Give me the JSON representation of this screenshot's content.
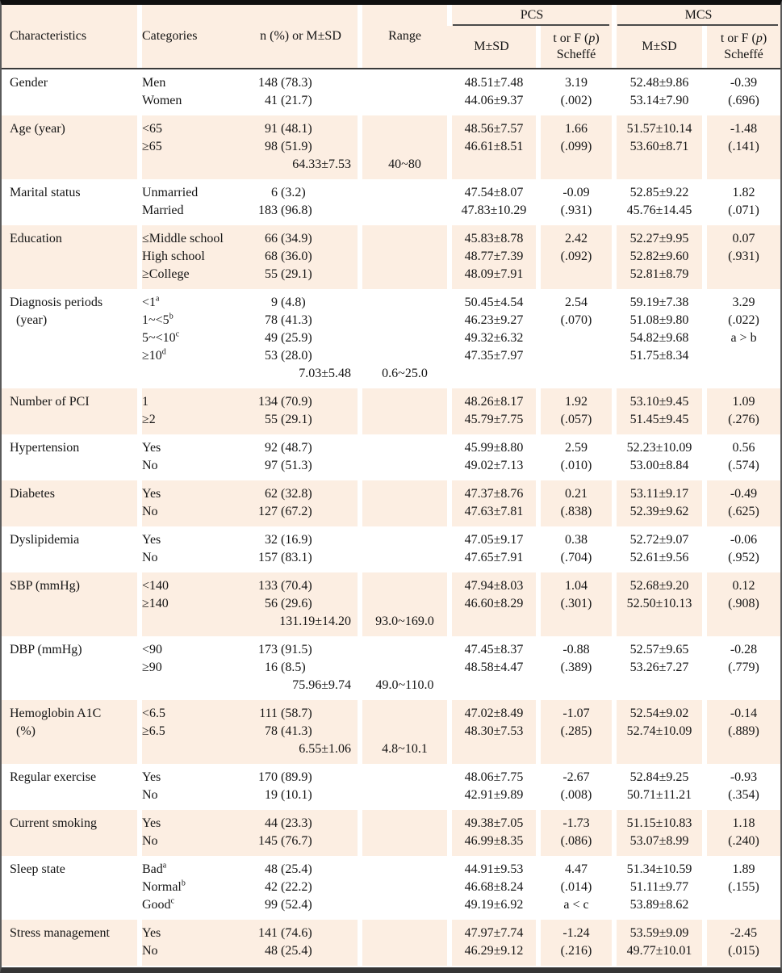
{
  "colors": {
    "row_shade": "#fceee2",
    "header_rule": "#3a3a3a",
    "outer_border": "#101010"
  },
  "table": {
    "header": {
      "characteristics": "Characteristics",
      "categories": "Categories",
      "n_or_msd": "n (%) or M±SD",
      "range": "Range",
      "group_pcs": "PCS",
      "group_mcs": "MCS",
      "sub_msd": "M±SD",
      "stat": {
        "pre": "t or F (",
        "italic": "p",
        "post": ")",
        "line2": "Scheffé"
      }
    },
    "rows": [
      {
        "label": [
          "Gender"
        ],
        "shaded": false,
        "cats": [
          {
            "t": "Men"
          },
          {
            "t": "Women"
          }
        ],
        "counts": [
          [
            "148",
            "(78.3)"
          ],
          [
            "41",
            "(21.7)"
          ]
        ],
        "pcs_msd": [
          "48.51±7.48",
          "44.06±9.37"
        ],
        "pcs_t": [
          "3.19",
          "(.002)"
        ],
        "mcs_msd": [
          "52.48±9.86",
          "53.14±7.90"
        ],
        "mcs_t": [
          "-0.39",
          "(.696)"
        ]
      },
      {
        "label": [
          "Age (year)"
        ],
        "shaded": true,
        "cats": [
          {
            "t": "<65"
          },
          {
            "t": "≥65"
          }
        ],
        "counts": [
          [
            "91",
            "(48.1)"
          ],
          [
            "98",
            "(51.9)"
          ]
        ],
        "sum": "64.33±7.53",
        "range": "40~80",
        "pcs_msd": [
          "48.56±7.57",
          "46.61±8.51"
        ],
        "pcs_t": [
          "1.66",
          "(.099)"
        ],
        "mcs_msd": [
          "51.57±10.14",
          "53.60±8.71"
        ],
        "mcs_t": [
          "-1.48",
          "(.141)"
        ]
      },
      {
        "label": [
          "Marital status"
        ],
        "shaded": false,
        "cats": [
          {
            "t": "Unmarried"
          },
          {
            "t": "Married"
          }
        ],
        "counts": [
          [
            "6",
            "(3.2)"
          ],
          [
            "183",
            "(96.8)"
          ]
        ],
        "pcs_msd": [
          "47.54±8.07",
          "47.83±10.29"
        ],
        "pcs_t": [
          "-0.09",
          "(.931)"
        ],
        "mcs_msd": [
          "52.85±9.22",
          "45.76±14.45"
        ],
        "mcs_t": [
          "1.82",
          "(.071)"
        ]
      },
      {
        "label": [
          "Education"
        ],
        "shaded": true,
        "cats": [
          {
            "t": "≤Middle school"
          },
          {
            "t": "High school"
          },
          {
            "t": "≥College"
          }
        ],
        "counts": [
          [
            "66",
            "(34.9)"
          ],
          [
            "68",
            "(36.0)"
          ],
          [
            "55",
            "(29.1)"
          ]
        ],
        "pcs_msd": [
          "45.83±8.78",
          "48.77±7.39",
          "48.09±7.91"
        ],
        "pcs_t": [
          "2.42",
          "(.092)"
        ],
        "mcs_msd": [
          "52.27±9.95",
          "52.82±9.60",
          "52.81±8.79"
        ],
        "mcs_t": [
          "0.07",
          "(.931)"
        ]
      },
      {
        "label": [
          "Diagnosis periods",
          "(year)"
        ],
        "shaded": false,
        "cats": [
          {
            "t": "<1",
            "s": "a"
          },
          {
            "t": "1~<5",
            "s": "b"
          },
          {
            "t": "5~<10",
            "s": "c"
          },
          {
            "t": "≥10",
            "s": "d"
          }
        ],
        "counts": [
          [
            "9",
            "(4.8)"
          ],
          [
            "78",
            "(41.3)"
          ],
          [
            "49",
            "(25.9)"
          ],
          [
            "53",
            "(28.0)"
          ]
        ],
        "sum": "7.03±5.48",
        "range": "0.6~25.0",
        "pcs_msd": [
          "50.45±4.54",
          "46.23±9.27",
          "49.32±6.32",
          "47.35±7.97"
        ],
        "pcs_t": [
          "2.54",
          "(.070)"
        ],
        "mcs_msd": [
          "59.19±7.38",
          "51.08±9.80",
          "54.82±9.68",
          "51.75±8.34"
        ],
        "mcs_t": [
          "3.29",
          "(.022)",
          "a > b"
        ]
      },
      {
        "label": [
          "Number of PCI"
        ],
        "shaded": true,
        "cats": [
          {
            "t": "1"
          },
          {
            "t": "≥2"
          }
        ],
        "counts": [
          [
            "134",
            "(70.9)"
          ],
          [
            "55",
            "(29.1)"
          ]
        ],
        "pcs_msd": [
          "48.26±8.17",
          "45.79±7.75"
        ],
        "pcs_t": [
          "1.92",
          "(.057)"
        ],
        "mcs_msd": [
          "53.10±9.45",
          "51.45±9.45"
        ],
        "mcs_t": [
          "1.09",
          "(.276)"
        ]
      },
      {
        "label": [
          "Hypertension"
        ],
        "shaded": false,
        "cats": [
          {
            "t": "Yes"
          },
          {
            "t": "No"
          }
        ],
        "counts": [
          [
            "92",
            "(48.7)"
          ],
          [
            "97",
            "(51.3)"
          ]
        ],
        "pcs_msd": [
          "45.99±8.80",
          "49.02±7.13"
        ],
        "pcs_t": [
          "2.59",
          "(.010)"
        ],
        "mcs_msd": [
          "52.23±10.09",
          "53.00±8.84"
        ],
        "mcs_t": [
          "0.56",
          "(.574)"
        ]
      },
      {
        "label": [
          "Diabetes"
        ],
        "shaded": true,
        "cats": [
          {
            "t": "Yes"
          },
          {
            "t": "No"
          }
        ],
        "counts": [
          [
            "62",
            "(32.8)"
          ],
          [
            "127",
            "(67.2)"
          ]
        ],
        "pcs_msd": [
          "47.37±8.76",
          "47.63±7.81"
        ],
        "pcs_t": [
          "0.21",
          "(.838)"
        ],
        "mcs_msd": [
          "53.11±9.17",
          "52.39±9.62"
        ],
        "mcs_t": [
          "-0.49",
          "(.625)"
        ]
      },
      {
        "label": [
          "Dyslipidemia"
        ],
        "shaded": false,
        "cats": [
          {
            "t": "Yes"
          },
          {
            "t": "No"
          }
        ],
        "counts": [
          [
            "32",
            "(16.9)"
          ],
          [
            "157",
            "(83.1)"
          ]
        ],
        "pcs_msd": [
          "47.05±9.17",
          "47.65±7.91"
        ],
        "pcs_t": [
          "0.38",
          "(.704)"
        ],
        "mcs_msd": [
          "52.72±9.07",
          "52.61±9.56"
        ],
        "mcs_t": [
          "-0.06",
          "(.952)"
        ]
      },
      {
        "label": [
          "SBP (mmHg)"
        ],
        "shaded": true,
        "cats": [
          {
            "t": "<140"
          },
          {
            "t": "≥140"
          }
        ],
        "counts": [
          [
            "133",
            "(70.4)"
          ],
          [
            "56",
            "(29.6)"
          ]
        ],
        "sum": "131.19±14.20",
        "range": "93.0~169.0",
        "pcs_msd": [
          "47.94±8.03",
          "46.60±8.29"
        ],
        "pcs_t": [
          "1.04",
          "(.301)"
        ],
        "mcs_msd": [
          "52.68±9.20",
          "52.50±10.13"
        ],
        "mcs_t": [
          "0.12",
          "(.908)"
        ]
      },
      {
        "label": [
          "DBP (mmHg)"
        ],
        "shaded": false,
        "cats": [
          {
            "t": "<90"
          },
          {
            "t": "≥90"
          }
        ],
        "counts": [
          [
            "173",
            "(91.5)"
          ],
          [
            "16",
            "(8.5)"
          ]
        ],
        "sum": "75.96±9.74",
        "range": "49.0~110.0",
        "pcs_msd": [
          "47.45±8.37",
          "48.58±4.47"
        ],
        "pcs_t": [
          "-0.88",
          "(.389)"
        ],
        "mcs_msd": [
          "52.57±9.65",
          "53.26±7.27"
        ],
        "mcs_t": [
          "-0.28",
          "(.779)"
        ]
      },
      {
        "label": [
          "Hemoglobin A1C",
          "(%)"
        ],
        "shaded": true,
        "cats": [
          {
            "t": "<6.5"
          },
          {
            "t": "≥6.5"
          }
        ],
        "counts": [
          [
            "111",
            "(58.7)"
          ],
          [
            "78",
            "(41.3)"
          ]
        ],
        "sum": "6.55±1.06",
        "range": "4.8~10.1",
        "pcs_msd": [
          "47.02±8.49",
          "48.30±7.53"
        ],
        "pcs_t": [
          "-1.07",
          "(.285)"
        ],
        "mcs_msd": [
          "52.54±9.02",
          "52.74±10.09"
        ],
        "mcs_t": [
          "-0.14",
          "(.889)"
        ]
      },
      {
        "label": [
          "Regular exercise"
        ],
        "shaded": false,
        "cats": [
          {
            "t": "Yes"
          },
          {
            "t": "No"
          }
        ],
        "counts": [
          [
            "170",
            "(89.9)"
          ],
          [
            "19",
            "(10.1)"
          ]
        ],
        "pcs_msd": [
          "48.06±7.75",
          "42.91±9.89"
        ],
        "pcs_t": [
          "-2.67",
          "(.008)"
        ],
        "mcs_msd": [
          "52.84±9.25",
          "50.71±11.21"
        ],
        "mcs_t": [
          "-0.93",
          "(.354)"
        ]
      },
      {
        "label": [
          "Current smoking"
        ],
        "shaded": true,
        "cats": [
          {
            "t": "Yes"
          },
          {
            "t": "No"
          }
        ],
        "counts": [
          [
            "44",
            "(23.3)"
          ],
          [
            "145",
            "(76.7)"
          ]
        ],
        "pcs_msd": [
          "49.38±7.05",
          "46.99±8.35"
        ],
        "pcs_t": [
          "-1.73",
          "(.086)"
        ],
        "mcs_msd": [
          "51.15±10.83",
          "53.07±8.99"
        ],
        "mcs_t": [
          "1.18",
          "(.240)"
        ]
      },
      {
        "label": [
          "Sleep state"
        ],
        "shaded": false,
        "cats": [
          {
            "t": "Bad",
            "s": "a"
          },
          {
            "t": "Normal",
            "s": "b"
          },
          {
            "t": "Good",
            "s": "c"
          }
        ],
        "counts": [
          [
            "48",
            "(25.4)"
          ],
          [
            "42",
            "(22.2)"
          ],
          [
            "99",
            "(52.4)"
          ]
        ],
        "pcs_msd": [
          "44.91±9.53",
          "46.68±8.24",
          "49.19±6.92"
        ],
        "pcs_t": [
          "4.47",
          "(.014)",
          "a < c"
        ],
        "mcs_msd": [
          "51.34±10.59",
          "51.11±9.77",
          "53.89±8.62"
        ],
        "mcs_t": [
          "1.89",
          "(.155)"
        ]
      },
      {
        "label": [
          "Stress management"
        ],
        "shaded": true,
        "cats": [
          {
            "t": "Yes"
          },
          {
            "t": "No"
          }
        ],
        "counts": [
          [
            "141",
            "(74.6)"
          ],
          [
            "48",
            "(25.4)"
          ]
        ],
        "pcs_msd": [
          "47.97±7.74",
          "46.29±9.12"
        ],
        "pcs_t": [
          "-1.24",
          "(.216)"
        ],
        "mcs_msd": [
          "53.59±9.09",
          "49.77±10.01"
        ],
        "mcs_t": [
          "-2.45",
          "(.015)"
        ]
      }
    ]
  }
}
